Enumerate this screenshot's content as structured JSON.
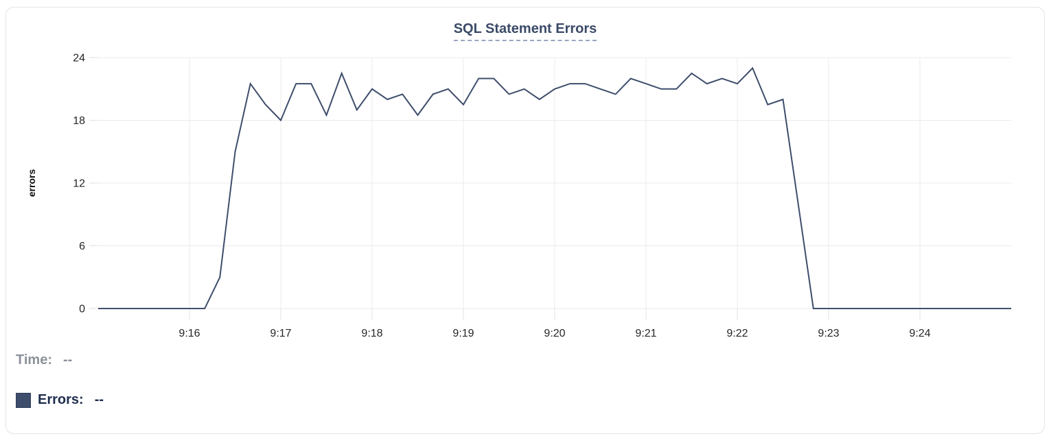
{
  "chart": {
    "title": "SQL Statement Errors"
  },
  "tooltip": {
    "time_label": "Time:",
    "errors_label": "Errors:",
    "empty_value": "--"
  },
  "colors": {
    "line": "#3e4d6b",
    "title": "#3b4a68",
    "title_underline": "#9aa5bf",
    "grid": "#ebebeb",
    "tick": "#e2e2e2",
    "tick_label": "#262626",
    "axis_title": "#0a0a0a",
    "time_text": "#8c919a",
    "errors_text": "#1f2d4e",
    "swatch_border": "#2c3b57",
    "card_border": "#e3e4e7"
  },
  "chart_data": {
    "type": "line",
    "title": "SQL Statement Errors",
    "xlabel": "",
    "ylabel": "errors",
    "ylim": [
      0,
      24
    ],
    "y_ticks": [
      0,
      6,
      12,
      18,
      24
    ],
    "x_tick_labels": [
      "9:16",
      "9:17",
      "9:18",
      "9:19",
      "9:20",
      "9:21",
      "9:22",
      "9:23",
      "9:24"
    ],
    "x_range": [
      "9:15:00",
      "9:25:00"
    ],
    "interval_seconds": 10,
    "grid": true,
    "legend_position": "bottom-left",
    "series": [
      {
        "name": "Errors",
        "color": "#3e4d6b",
        "times": [
          "9:15:00",
          "9:15:10",
          "9:15:20",
          "9:15:30",
          "9:15:40",
          "9:15:50",
          "9:16:00",
          "9:16:10",
          "9:16:20",
          "9:16:30",
          "9:16:40",
          "9:16:50",
          "9:17:00",
          "9:17:10",
          "9:17:20",
          "9:17:30",
          "9:17:40",
          "9:17:50",
          "9:18:00",
          "9:18:10",
          "9:18:20",
          "9:18:30",
          "9:18:40",
          "9:18:50",
          "9:19:00",
          "9:19:10",
          "9:19:20",
          "9:19:30",
          "9:19:40",
          "9:19:50",
          "9:20:00",
          "9:20:10",
          "9:20:20",
          "9:20:30",
          "9:20:40",
          "9:20:50",
          "9:21:00",
          "9:21:10",
          "9:21:20",
          "9:21:30",
          "9:21:40",
          "9:21:50",
          "9:22:00",
          "9:22:10",
          "9:22:20",
          "9:22:30",
          "9:22:40",
          "9:22:50",
          "9:23:00",
          "9:23:10",
          "9:23:20",
          "9:23:30",
          "9:23:40",
          "9:23:50",
          "9:24:00",
          "9:24:10",
          "9:24:20",
          "9:24:30",
          "9:24:40",
          "9:24:50",
          "9:25:00"
        ],
        "values": [
          0,
          0,
          0,
          0,
          0,
          0,
          0,
          0,
          3,
          15,
          21.5,
          19.5,
          18,
          21.5,
          21.5,
          18.5,
          22.5,
          19,
          21,
          20,
          20.5,
          18.5,
          20.5,
          21,
          19.5,
          22,
          22,
          20.5,
          21,
          20,
          21,
          21.5,
          21.5,
          21,
          20.5,
          22,
          21.5,
          21,
          21,
          22.5,
          21.5,
          22,
          21.5,
          23,
          19.5,
          20,
          10,
          0,
          0,
          0,
          0,
          0,
          0,
          0,
          0,
          0,
          0,
          0,
          0,
          0,
          0
        ]
      }
    ]
  }
}
